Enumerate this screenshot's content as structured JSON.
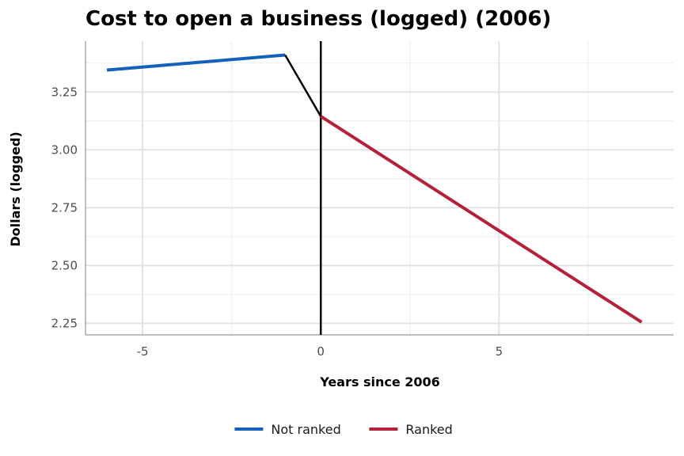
{
  "chart_data": {
    "type": "line",
    "title": "Cost to open a business (logged) (2006)",
    "xlabel": "Years since 2006",
    "ylabel": "Dollars (logged)",
    "xlim": [
      -6.6,
      9.9
    ],
    "ylim": [
      2.2,
      3.47
    ],
    "x_ticks": [
      -5,
      0,
      5
    ],
    "x_tick_labels": [
      "-5",
      "0",
      "5"
    ],
    "y_ticks": [
      2.25,
      2.5,
      2.75,
      3.0,
      3.25
    ],
    "y_tick_labels": [
      "2.25",
      "2.50",
      "2.75",
      "3.00",
      "3.25"
    ],
    "grid": true,
    "legend_position": "bottom",
    "vertical_line": {
      "x": 0,
      "color": "#000000"
    },
    "series": [
      {
        "name": "Not ranked",
        "color": "#1560bd",
        "x": [
          -6,
          -1
        ],
        "y": [
          3.345,
          3.41
        ]
      },
      {
        "name": "",
        "color": "#000000",
        "x": [
          -1,
          0
        ],
        "y": [
          3.41,
          3.145
        ]
      },
      {
        "name": "Ranked",
        "color": "#b5213a",
        "x": [
          0,
          9
        ],
        "y": [
          3.145,
          2.255
        ]
      }
    ],
    "legend": [
      {
        "label": "Not ranked",
        "color": "#1560bd"
      },
      {
        "label": "Ranked",
        "color": "#b5213a"
      }
    ]
  }
}
